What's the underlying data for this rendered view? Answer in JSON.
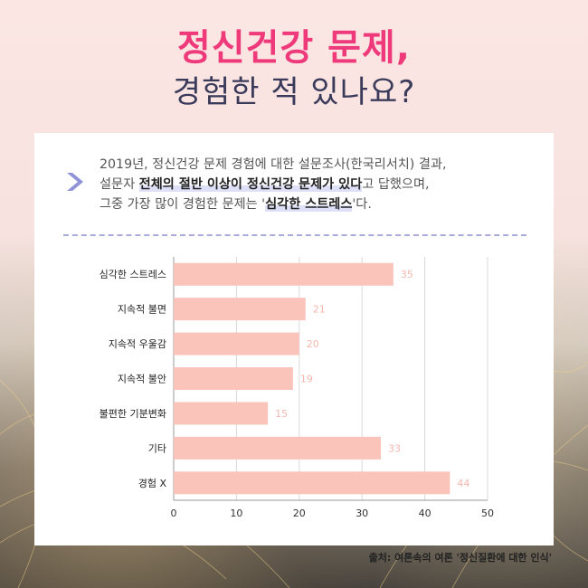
{
  "header": {
    "title_line1": "정신건강 문제,",
    "title_line2": "경험한 적 있나요?"
  },
  "intro": {
    "line1": "2019년, 정신건강 문제 경험에 대한 설문조사(한국리서치) 결과,",
    "line2_pre": "설문자 ",
    "line2_bold": "전체의 절반 이상이 정신건강 문제가 있다",
    "line2_post": "고 답했으며,",
    "line3_pre": "그중 가장 많이 경험한 문제는 '",
    "line3_bold": "심각한 스트레스",
    "line3_post": "'다."
  },
  "chart_data": {
    "type": "bar",
    "orientation": "horizontal",
    "categories": [
      "심각한 스트레스",
      "지속적 불면",
      "지속적 우울감",
      "지속적 불안",
      "불편한 기분변화",
      "기타",
      "경험 X"
    ],
    "values": [
      35,
      21,
      20,
      19,
      15,
      33,
      44
    ],
    "xlim": [
      0,
      50
    ],
    "xticks": [
      "0",
      "10",
      "20",
      "30",
      "40",
      "50"
    ],
    "grid": "vertical",
    "bar_color": "#fbc4bb",
    "label_color": "#f4b8ae"
  },
  "footer": {
    "source": "출처: 여론속의 여론 '정신질환에 대한 인식'"
  },
  "colors": {
    "title_pink": "#ee3a7b",
    "title_navy": "#3a3a5a",
    "accent_lavender": "#a9abd9"
  }
}
